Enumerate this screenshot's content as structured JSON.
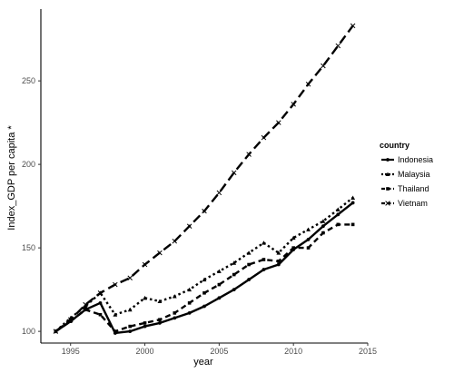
{
  "chart_data": {
    "type": "line",
    "xlabel": "year",
    "ylabel": "Index_GDP per capita *",
    "xlim": [
      1993,
      2015
    ],
    "ylim": [
      93,
      293
    ],
    "x_ticks": [
      1995,
      2000,
      2005,
      2010,
      2015
    ],
    "y_ticks": [
      100,
      150,
      200,
      250
    ],
    "grid": false,
    "legend": {
      "title": "country",
      "position": "right"
    },
    "x": [
      1994,
      1995,
      1996,
      1997,
      1998,
      1999,
      2000,
      2001,
      2002,
      2003,
      2004,
      2005,
      2006,
      2007,
      2008,
      2009,
      2010,
      2011,
      2012,
      2013,
      2014
    ],
    "series": [
      {
        "name": "Indonesia",
        "line_style": "solid",
        "marker": "circle",
        "values": [
          100,
          106,
          113,
          117,
          99,
          100,
          103,
          105,
          108,
          111,
          115,
          120,
          125,
          131,
          137,
          140,
          149,
          155,
          163,
          170,
          177
        ]
      },
      {
        "name": "Malaysia",
        "line_style": "dotted",
        "marker": "triangle",
        "values": [
          100,
          108,
          115,
          123,
          110,
          113,
          120,
          118,
          121,
          125,
          131,
          136,
          141,
          147,
          153,
          147,
          156,
          161,
          166,
          173,
          180
        ]
      },
      {
        "name": "Thailand",
        "line_style": "dashed",
        "marker": "square",
        "values": [
          100,
          106,
          113,
          110,
          100,
          103,
          105,
          107,
          111,
          117,
          123,
          128,
          134,
          140,
          143,
          142,
          150,
          150,
          159,
          164,
          164
        ]
      },
      {
        "name": "Vietnam",
        "line_style": "longdash",
        "marker": "cross",
        "values": [
          100,
          107,
          116,
          123,
          128,
          132,
          140,
          147,
          154,
          163,
          172,
          183,
          195,
          206,
          216,
          225,
          236,
          248,
          259,
          271,
          283
        ]
      }
    ],
    "colors": {
      "series": "#000000",
      "axis": "#000000",
      "tick_label": "#4d4d4d"
    }
  }
}
